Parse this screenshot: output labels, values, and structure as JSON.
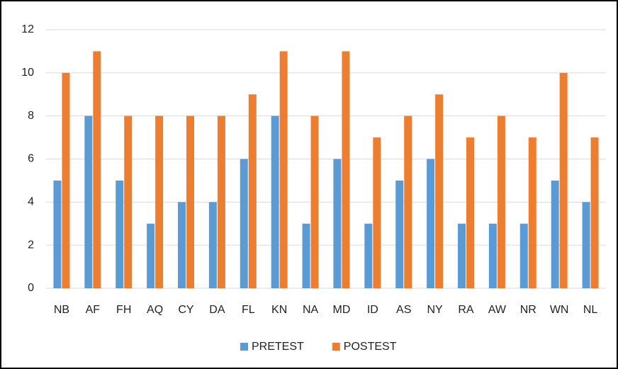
{
  "chart_data": {
    "type": "bar",
    "categories": [
      "NB",
      "AF",
      "FH",
      "AQ",
      "CY",
      "DA",
      "FL",
      "KN",
      "NA",
      "MD",
      "ID",
      "AS",
      "NY",
      "RA",
      "AW",
      "NR",
      "WN",
      "NL"
    ],
    "series": [
      {
        "name": "PRETEST",
        "color": "#5b9bd5",
        "values": [
          5,
          8,
          5,
          3,
          4,
          4,
          6,
          8,
          3,
          6,
          3,
          5,
          6,
          3,
          3,
          3,
          5,
          4
        ]
      },
      {
        "name": "POSTEST",
        "color": "#ed7d31",
        "values": [
          10,
          11,
          8,
          8,
          8,
          8,
          9,
          11,
          8,
          11,
          7,
          8,
          9,
          7,
          8,
          7,
          10,
          7
        ]
      }
    ],
    "ylim": [
      0,
      12
    ],
    "yticks": [
      0,
      2,
      4,
      6,
      8,
      10,
      12
    ],
    "grid": true,
    "legend": "bottom"
  }
}
